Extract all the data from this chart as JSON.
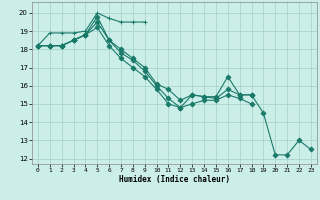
{
  "xlabel": "Humidex (Indice chaleur)",
  "bg_color": "#cceee8",
  "grid_color": "#aad4cc",
  "line_color": "#1a7a6a",
  "xlim": [
    -0.5,
    23.5
  ],
  "ylim": [
    11.7,
    20.6
  ],
  "xticks": [
    0,
    1,
    2,
    3,
    4,
    5,
    6,
    7,
    8,
    9,
    10,
    11,
    12,
    13,
    14,
    15,
    16,
    17,
    18,
    19,
    20,
    21,
    22,
    23
  ],
  "yticks": [
    12,
    13,
    14,
    15,
    16,
    17,
    18,
    19,
    20
  ],
  "series": [
    {
      "x": [
        0,
        1,
        2,
        3,
        4,
        5,
        6,
        7,
        8,
        9
      ],
      "y": [
        18.2,
        18.9,
        18.9,
        18.9,
        19.0,
        20.0,
        19.7,
        19.5,
        19.5,
        19.5
      ],
      "marker": "+"
    },
    {
      "x": [
        0,
        1,
        2,
        3,
        4,
        5,
        6,
        7,
        8,
        9,
        10,
        11,
        12,
        13,
        14,
        15,
        16,
        17,
        18,
        19,
        20,
        21,
        22,
        23
      ],
      "y": [
        18.2,
        18.2,
        18.2,
        18.5,
        18.8,
        19.8,
        18.5,
        18.0,
        17.5,
        17.0,
        16.1,
        15.8,
        15.2,
        15.5,
        15.4,
        15.4,
        16.5,
        15.5,
        15.5,
        14.5,
        12.2,
        12.2,
        13.0,
        12.5
      ],
      "marker": "D"
    },
    {
      "x": [
        0,
        1,
        2,
        3,
        4,
        5,
        6,
        7,
        8,
        9,
        10,
        11,
        12,
        13,
        14,
        15,
        16,
        17,
        18
      ],
      "y": [
        18.2,
        18.2,
        18.2,
        18.5,
        18.8,
        19.5,
        18.5,
        17.8,
        17.4,
        16.8,
        16.0,
        15.3,
        14.8,
        15.5,
        15.4,
        15.3,
        15.8,
        15.5,
        15.5
      ],
      "marker": "D"
    },
    {
      "x": [
        0,
        1,
        2,
        3,
        4,
        5,
        6,
        7,
        8,
        9,
        10,
        11,
        12,
        13,
        14,
        15,
        16,
        17,
        18
      ],
      "y": [
        18.2,
        18.2,
        18.2,
        18.5,
        18.8,
        19.2,
        18.2,
        17.5,
        17.0,
        16.5,
        15.8,
        15.0,
        14.8,
        15.0,
        15.2,
        15.2,
        15.5,
        15.3,
        15.0
      ],
      "marker": "D"
    }
  ]
}
